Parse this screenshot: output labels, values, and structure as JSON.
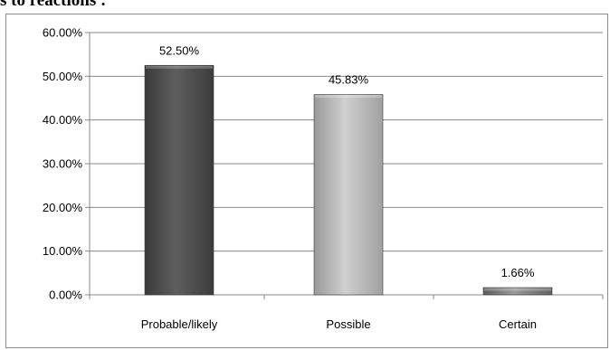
{
  "heading": "s to reactions :",
  "chart_data": {
    "type": "bar",
    "categories": [
      "Probable/likely",
      "Possible",
      "Certain"
    ],
    "values": [
      52.5,
      45.83,
      1.66
    ],
    "value_labels": [
      "52.50%",
      "45.83%",
      "1.66%"
    ],
    "title": "",
    "xlabel": "",
    "ylabel": "",
    "ylim": [
      0,
      60
    ],
    "yticks": [
      0,
      10,
      20,
      30,
      40,
      50,
      60
    ],
    "ytick_labels": [
      "0.00%",
      "10.00%",
      "20.00%",
      "30.00%",
      "40.00%",
      "50.00%",
      "60.00%"
    ],
    "grid": true,
    "legend": "none",
    "bar_colors": [
      "#505050",
      "#b4b4b4",
      "#7a7a7a"
    ],
    "gridline_color": "#888888"
  }
}
